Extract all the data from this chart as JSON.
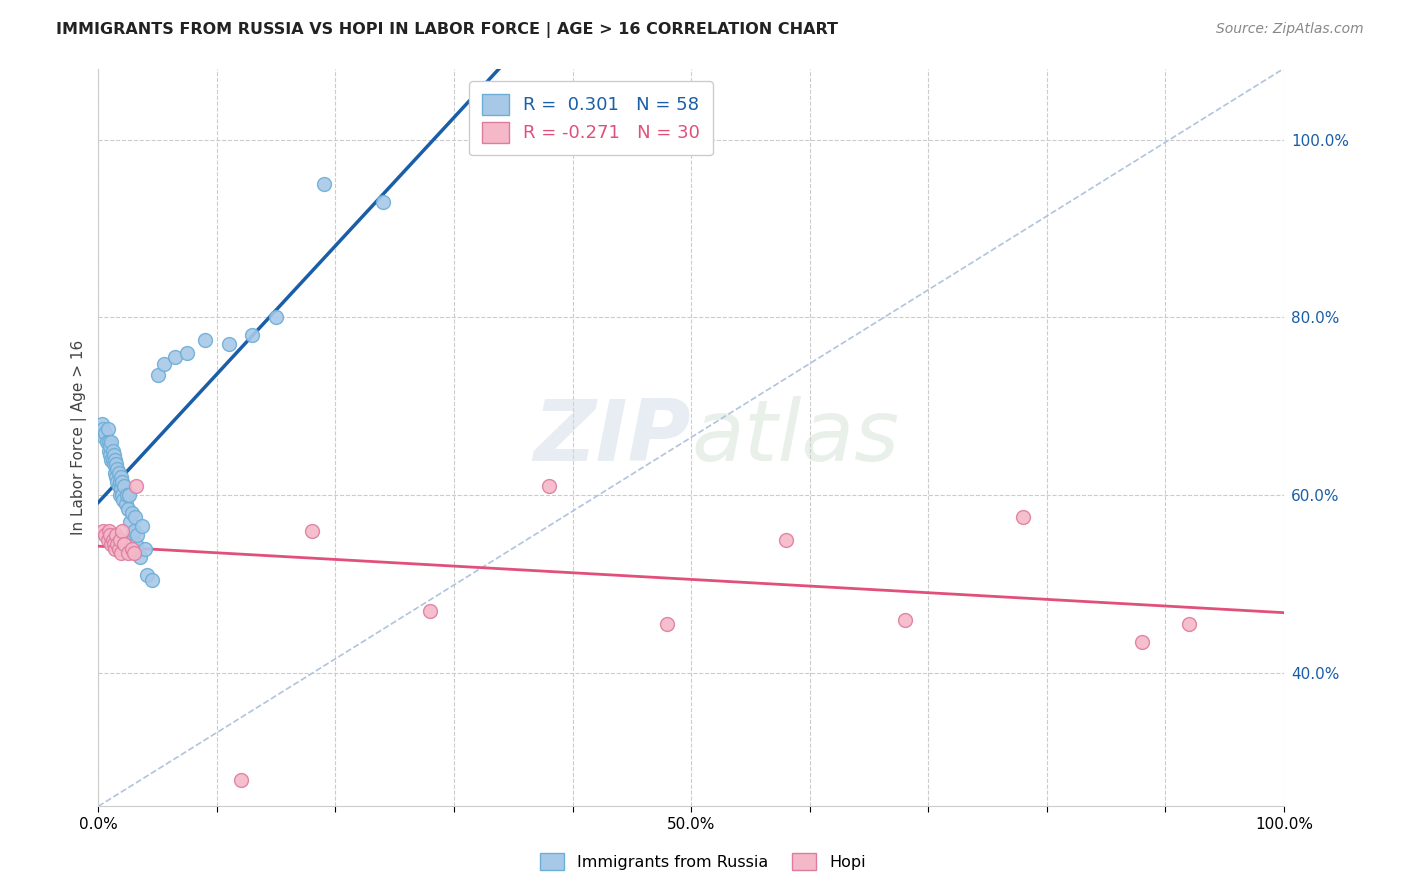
{
  "title": "IMMIGRANTS FROM RUSSIA VS HOPI IN LABOR FORCE | AGE > 16 CORRELATION CHART",
  "source": "Source: ZipAtlas.com",
  "ylabel": "In Labor Force | Age > 16",
  "xlim": [
    0.0,
    1.0
  ],
  "ylim": [
    0.25,
    1.08
  ],
  "ytick_vals": [
    0.4,
    0.6,
    0.8,
    1.0
  ],
  "ytick_labels": [
    "40.0%",
    "60.0%",
    "80.0%",
    "100.0%"
  ],
  "xtick_vals": [
    0.0,
    0.1,
    0.2,
    0.3,
    0.4,
    0.5,
    0.6,
    0.7,
    0.8,
    0.9,
    1.0
  ],
  "xtick_labels": [
    "0.0%",
    "",
    "",
    "",
    "",
    "50.0%",
    "",
    "",
    "",
    "",
    "100.0%"
  ],
  "russia_color": "#a8c8e8",
  "russia_edge_color": "#6baed6",
  "hopi_color": "#f4b8c8",
  "hopi_edge_color": "#de7ca0",
  "russia_line_color": "#1a5ea8",
  "hopi_line_color": "#e0507a",
  "diag_line_color": "#b0c4de",
  "R_russia": 0.301,
  "N_russia": 58,
  "R_hopi": -0.271,
  "N_hopi": 30,
  "russia_x": [
    0.003,
    0.004,
    0.005,
    0.006,
    0.007,
    0.008,
    0.009,
    0.009,
    0.01,
    0.01,
    0.011,
    0.011,
    0.012,
    0.012,
    0.013,
    0.013,
    0.014,
    0.014,
    0.015,
    0.015,
    0.016,
    0.016,
    0.017,
    0.017,
    0.018,
    0.018,
    0.019,
    0.019,
    0.02,
    0.02,
    0.021,
    0.022,
    0.023,
    0.024,
    0.025,
    0.026,
    0.027,
    0.028,
    0.029,
    0.03,
    0.031,
    0.032,
    0.033,
    0.035,
    0.037,
    0.039,
    0.041,
    0.045,
    0.05,
    0.055,
    0.065,
    0.075,
    0.09,
    0.11,
    0.13,
    0.15,
    0.19,
    0.24
  ],
  "russia_y": [
    0.68,
    0.675,
    0.665,
    0.67,
    0.66,
    0.675,
    0.66,
    0.65,
    0.645,
    0.655,
    0.64,
    0.66,
    0.65,
    0.64,
    0.645,
    0.635,
    0.64,
    0.625,
    0.635,
    0.62,
    0.63,
    0.615,
    0.625,
    0.61,
    0.615,
    0.6,
    0.62,
    0.608,
    0.6,
    0.615,
    0.595,
    0.61,
    0.59,
    0.6,
    0.585,
    0.6,
    0.57,
    0.58,
    0.558,
    0.56,
    0.575,
    0.545,
    0.555,
    0.53,
    0.565,
    0.54,
    0.51,
    0.505,
    0.735,
    0.748,
    0.755,
    0.76,
    0.775,
    0.77,
    0.78,
    0.8,
    0.95,
    0.93
  ],
  "hopi_x": [
    0.004,
    0.006,
    0.008,
    0.009,
    0.01,
    0.011,
    0.012,
    0.013,
    0.014,
    0.015,
    0.016,
    0.017,
    0.018,
    0.019,
    0.02,
    0.022,
    0.025,
    0.028,
    0.03,
    0.032,
    0.12,
    0.18,
    0.28,
    0.38,
    0.48,
    0.58,
    0.68,
    0.78,
    0.88,
    0.92
  ],
  "hopi_y": [
    0.56,
    0.555,
    0.55,
    0.56,
    0.555,
    0.545,
    0.55,
    0.545,
    0.54,
    0.555,
    0.545,
    0.54,
    0.55,
    0.535,
    0.56,
    0.545,
    0.535,
    0.54,
    0.535,
    0.61,
    0.28,
    0.56,
    0.47,
    0.61,
    0.455,
    0.55,
    0.46,
    0.575,
    0.435,
    0.455
  ],
  "watermark_zip": "ZIP",
  "watermark_atlas": "atlas",
  "background_color": "#ffffff",
  "grid_color": "#cccccc"
}
